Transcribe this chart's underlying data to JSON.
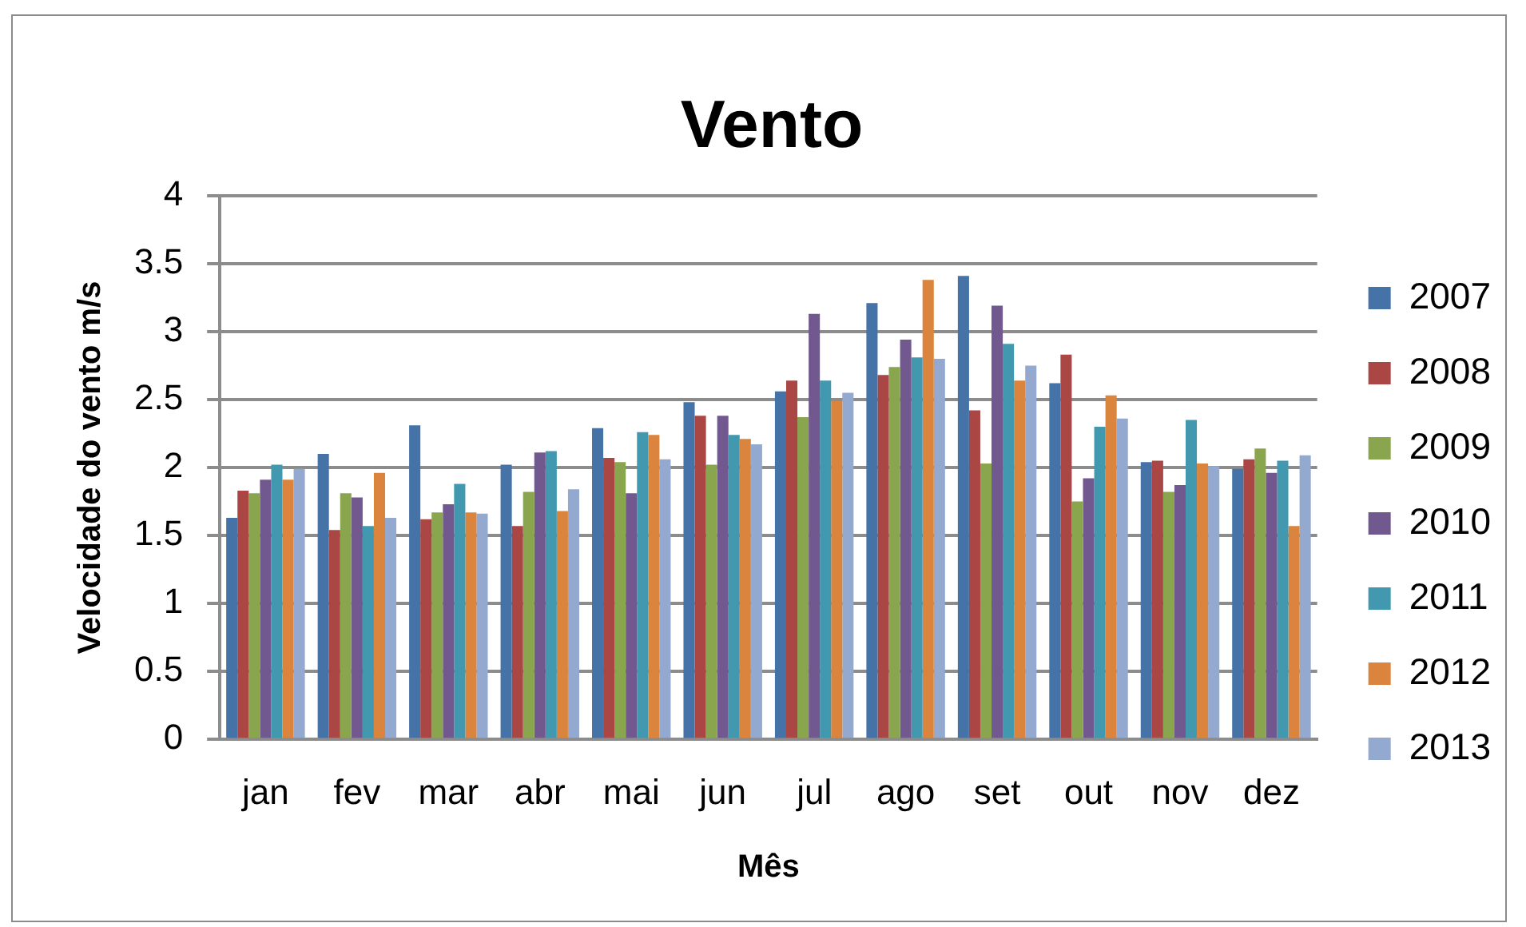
{
  "chart_data": {
    "type": "bar",
    "title": "Vento",
    "xlabel": "Mês",
    "ylabel": "Velocidade do vento m/s",
    "categories": [
      "jan",
      "fev",
      "mar",
      "abr",
      "mai",
      "jun",
      "jul",
      "ago",
      "set",
      "out",
      "nov",
      "dez"
    ],
    "series": [
      {
        "name": "2007",
        "color": "#4572a7",
        "values": [
          1.63,
          2.1,
          2.31,
          2.02,
          2.29,
          2.48,
          2.56,
          3.21,
          3.41,
          2.62,
          2.04,
          1.99
        ]
      },
      {
        "name": "2008",
        "color": "#aa4643",
        "values": [
          1.83,
          1.54,
          1.62,
          1.57,
          2.07,
          2.38,
          2.64,
          2.68,
          2.42,
          2.83,
          2.05,
          2.06
        ]
      },
      {
        "name": "2009",
        "color": "#89a54e",
        "values": [
          1.81,
          1.81,
          1.67,
          1.82,
          2.04,
          2.02,
          2.37,
          2.74,
          2.03,
          1.75,
          1.82,
          2.14
        ]
      },
      {
        "name": "2010",
        "color": "#71588f",
        "values": [
          1.91,
          1.78,
          1.73,
          2.11,
          1.81,
          2.38,
          3.13,
          2.94,
          3.19,
          1.92,
          1.87,
          1.96
        ]
      },
      {
        "name": "2011",
        "color": "#4198af",
        "values": [
          2.02,
          1.57,
          1.88,
          2.12,
          2.26,
          2.24,
          2.64,
          2.81,
          2.91,
          2.3,
          2.35,
          2.05
        ]
      },
      {
        "name": "2012",
        "color": "#db843d",
        "values": [
          1.91,
          1.96,
          1.67,
          1.68,
          2.24,
          2.21,
          2.49,
          3.38,
          2.64,
          2.53,
          2.03,
          1.57
        ]
      },
      {
        "name": "2013",
        "color": "#93a9cf",
        "values": [
          1.99,
          1.63,
          1.66,
          1.84,
          2.06,
          2.17,
          2.55,
          2.8,
          2.75,
          2.36,
          2.01,
          2.09
        ]
      }
    ],
    "ylim": [
      0,
      4
    ],
    "yticks": [
      0,
      0.5,
      1,
      1.5,
      2,
      2.5,
      3,
      3.5,
      4
    ],
    "grid": "y",
    "legend": "right"
  }
}
